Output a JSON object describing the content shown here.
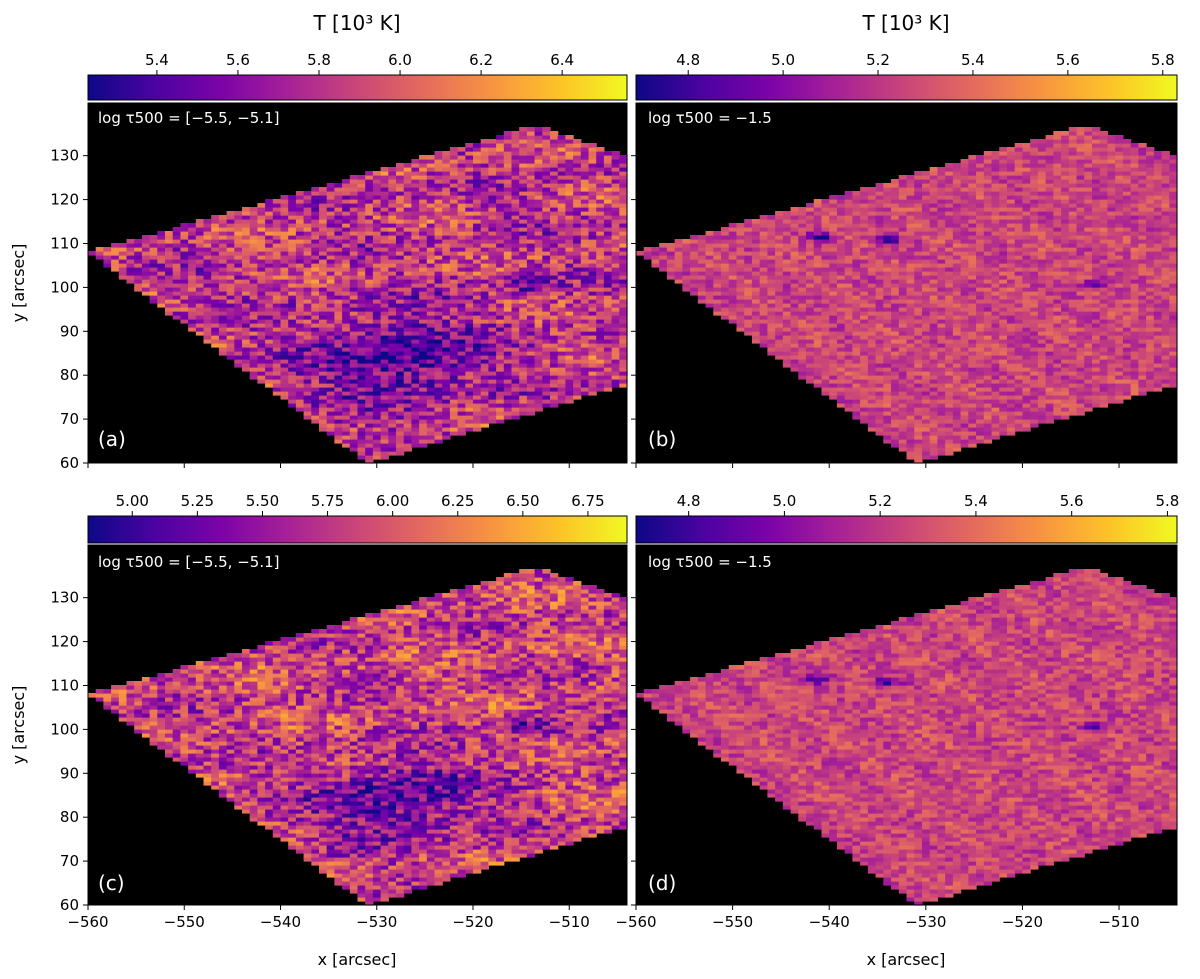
{
  "figure": {
    "panels": [
      {
        "label": "(a)",
        "annotation": "log τ500 = [−5.5, −5.1]",
        "cbar_label": "T [10³ K]",
        "cbar_ticks": [
          "5.4",
          "5.6",
          "5.8",
          "6.0",
          "6.2",
          "6.4"
        ],
        "cbar_range": [
          5.23,
          6.56
        ],
        "ylabel": "y [arcsec]",
        "xlabel": "",
        "show_xticklabels": false,
        "show_yticklabels": true
      },
      {
        "label": "(b)",
        "annotation": "log τ500 = −1.5",
        "cbar_label": "T [10³ K]",
        "cbar_ticks": [
          "4.8",
          "5.0",
          "5.2",
          "5.4",
          "5.6",
          "5.8"
        ],
        "cbar_range": [
          4.69,
          5.83
        ],
        "ylabel": "",
        "xlabel": "",
        "show_xticklabels": false,
        "show_yticklabels": false
      },
      {
        "label": "(c)",
        "annotation": "log τ500 = [−5.5, −5.1]",
        "cbar_label": "",
        "cbar_ticks": [
          "5.00",
          "5.25",
          "5.50",
          "5.75",
          "6.00",
          "6.25",
          "6.50",
          "6.75"
        ],
        "cbar_range": [
          4.83,
          6.9
        ],
        "ylabel": "y [arcsec]",
        "xlabel": "x [arcsec]",
        "show_xticklabels": true,
        "show_yticklabels": true
      },
      {
        "label": "(d)",
        "annotation": "log τ500 = −1.5",
        "cbar_label": "",
        "cbar_ticks": [
          "4.8",
          "5.0",
          "5.2",
          "5.4",
          "5.6",
          "5.8"
        ],
        "cbar_range": [
          4.69,
          5.82
        ],
        "ylabel": "",
        "xlabel": "x [arcsec]",
        "show_xticklabels": true,
        "show_yticklabels": false
      }
    ]
  },
  "chart_data": {
    "type": "heatmap",
    "colormap": "plasma",
    "background_color": "#000000",
    "xlim": [
      -560,
      -504
    ],
    "ylim": [
      60,
      142
    ],
    "x_ticks": [
      -560,
      -550,
      -540,
      -530,
      -520,
      -510
    ],
    "x_tick_labels": [
      "−560",
      "−550",
      "−540",
      "−530",
      "−520",
      "−510"
    ],
    "y_ticks": [
      60,
      70,
      80,
      90,
      100,
      110,
      120,
      130
    ],
    "y_tick_labels": [
      "60",
      "70",
      "80",
      "90",
      "100",
      "110",
      "120",
      "130"
    ],
    "field_of_view_corners": [
      [
        -560,
        108
      ],
      [
        -513.5,
        137
      ],
      [
        -504,
        130
      ],
      [
        -504,
        78
      ],
      [
        -531,
        60
      ]
    ],
    "features": {
      "chromosphere_cool_region": {
        "x": -528,
        "y": 84
      },
      "chromosphere_cool_patch": {
        "x": -514,
        "y": 101
      },
      "photosphere_dark_spots": [
        {
          "x": -541,
          "y": 111.5
        },
        {
          "x": -534,
          "y": 111
        },
        {
          "x": -512.5,
          "y": 101
        }
      ]
    }
  }
}
